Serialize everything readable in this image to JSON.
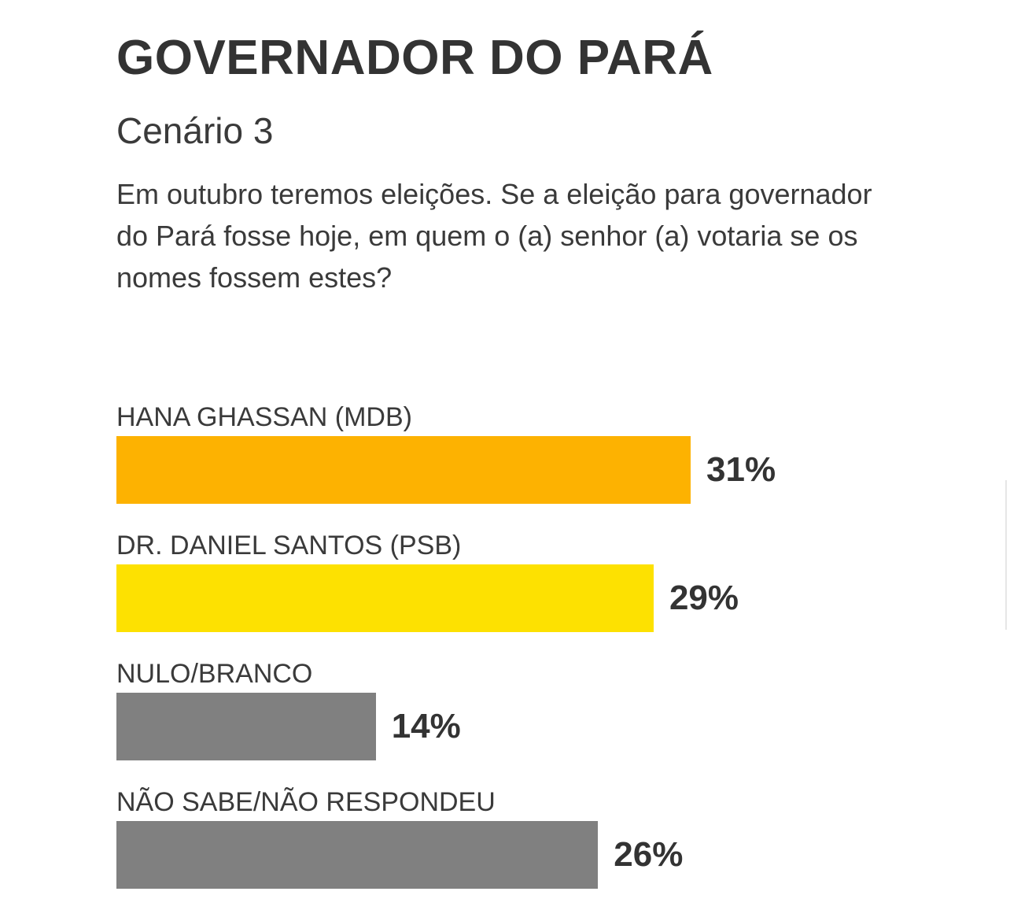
{
  "header": {
    "title": "GOVERNADOR DO PARÁ",
    "subtitle": "Cenário 3",
    "question": "Em outubro teremos eleições. Se a eleição para governador do Pará fosse hoje, em quem o (a) senhor (a) votaria se os nomes fossem estes?"
  },
  "chart_data": {
    "type": "bar",
    "orientation": "horizontal",
    "title": "GOVERNADOR DO PARÁ",
    "subtitle": "Cenário 3",
    "categories": [
      "HANA GHASSAN (MDB)",
      "DR. DANIEL SANTOS (PSB)",
      "NULO/BRANCO",
      "NÃO SABE/NÃO RESPONDEU"
    ],
    "values": [
      31,
      29,
      14,
      26
    ],
    "value_labels": [
      "31%",
      "29%",
      "14%",
      "26%"
    ],
    "colors": [
      "#fdb201",
      "#fde101",
      "#808080",
      "#808080"
    ],
    "xlabel": "",
    "ylabel": "",
    "grid": false,
    "legend": "none"
  }
}
